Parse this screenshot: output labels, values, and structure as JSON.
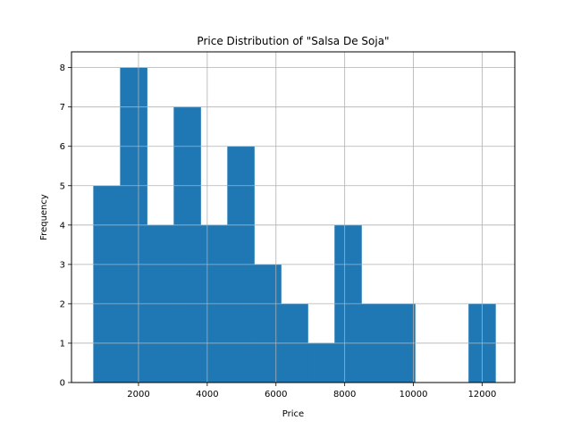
{
  "chart_data": {
    "type": "bar",
    "subtype": "histogram",
    "title": "Price Distribution of \"Salsa De Soja\"",
    "xlabel": "Price",
    "ylabel": "Frequency",
    "xlim": [
      50,
      12950
    ],
    "ylim": [
      0,
      8.4
    ],
    "x_ticks": [
      2000,
      4000,
      6000,
      8000,
      10000,
      12000
    ],
    "y_ticks": [
      0,
      1,
      2,
      3,
      4,
      5,
      6,
      7,
      8
    ],
    "grid": true,
    "bar_color": "#1f77b4",
    "bins": [
      {
        "start": 690,
        "end": 1470,
        "count": 5
      },
      {
        "start": 1470,
        "end": 2250,
        "count": 8
      },
      {
        "start": 2250,
        "end": 3030,
        "count": 4
      },
      {
        "start": 3030,
        "end": 3810,
        "count": 7
      },
      {
        "start": 3810,
        "end": 4590,
        "count": 4
      },
      {
        "start": 4590,
        "end": 5370,
        "count": 6
      },
      {
        "start": 5370,
        "end": 6150,
        "count": 3
      },
      {
        "start": 6150,
        "end": 6930,
        "count": 2
      },
      {
        "start": 6930,
        "end": 7710,
        "count": 1
      },
      {
        "start": 7710,
        "end": 8490,
        "count": 4
      },
      {
        "start": 8490,
        "end": 9270,
        "count": 2
      },
      {
        "start": 9270,
        "end": 10050,
        "count": 2
      },
      {
        "start": 10050,
        "end": 10830,
        "count": 0
      },
      {
        "start": 10830,
        "end": 11610,
        "count": 0
      },
      {
        "start": 11610,
        "end": 12390,
        "count": 2
      }
    ]
  }
}
